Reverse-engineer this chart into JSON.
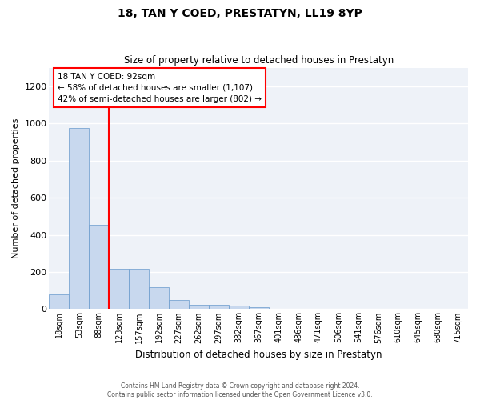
{
  "title": "18, TAN Y COED, PRESTATYN, LL19 8YP",
  "subtitle": "Size of property relative to detached houses in Prestatyn",
  "xlabel": "Distribution of detached houses by size in Prestatyn",
  "ylabel": "Number of detached properties",
  "bar_color": "#c8d8ee",
  "bar_edge_color": "#6699cc",
  "categories": [
    "18sqm",
    "53sqm",
    "88sqm",
    "123sqm",
    "157sqm",
    "192sqm",
    "227sqm",
    "262sqm",
    "297sqm",
    "332sqm",
    "367sqm",
    "401sqm",
    "436sqm",
    "471sqm",
    "506sqm",
    "541sqm",
    "576sqm",
    "610sqm",
    "645sqm",
    "680sqm",
    "715sqm"
  ],
  "values": [
    80,
    975,
    455,
    215,
    215,
    120,
    50,
    25,
    22,
    18,
    12,
    0,
    0,
    0,
    0,
    0,
    0,
    0,
    0,
    0,
    0
  ],
  "ylim": [
    0,
    1300
  ],
  "yticks": [
    0,
    200,
    400,
    600,
    800,
    1000,
    1200
  ],
  "annotation_text": "18 TAN Y COED: 92sqm\n← 58% of detached houses are smaller (1,107)\n42% of semi-detached houses are larger (802) →",
  "annotation_box_color": "white",
  "annotation_box_edge": "red",
  "vline_color": "red",
  "footer_line1": "Contains HM Land Registry data © Crown copyright and database right 2024.",
  "footer_line2": "Contains public sector information licensed under the Open Government Licence v3.0.",
  "background_color": "#eef2f8"
}
